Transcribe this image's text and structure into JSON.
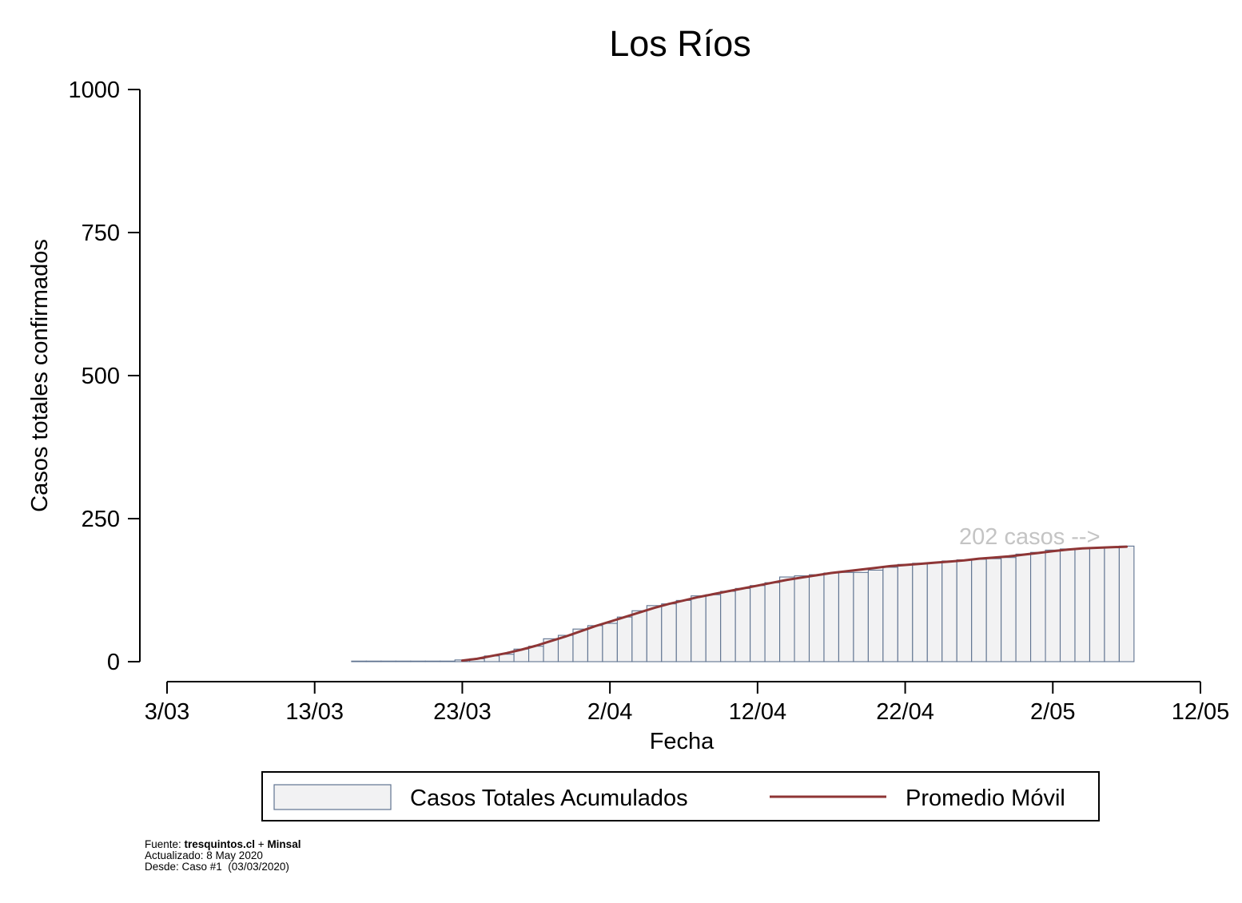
{
  "chart_data": {
    "type": "bar",
    "title": "Los Ríos",
    "xlabel": "Fecha",
    "ylabel": "Casos totales confirmados",
    "xlim": [
      "2020-03-03",
      "2020-05-12"
    ],
    "ylim": [
      0,
      1000
    ],
    "yticks": [
      0,
      250,
      500,
      750,
      1000
    ],
    "xticks": [
      {
        "value": "2020-03-03",
        "label": "3/03"
      },
      {
        "value": "2020-03-13",
        "label": "13/03"
      },
      {
        "value": "2020-03-23",
        "label": "23/03"
      },
      {
        "value": "2020-04-02",
        "label": "2/04"
      },
      {
        "value": "2020-04-12",
        "label": "12/04"
      },
      {
        "value": "2020-04-22",
        "label": "22/04"
      },
      {
        "value": "2020-05-02",
        "label": "2/05"
      },
      {
        "value": "2020-05-12",
        "label": "12/05"
      }
    ],
    "x": [
      "2020-03-16",
      "2020-03-17",
      "2020-03-18",
      "2020-03-19",
      "2020-03-20",
      "2020-03-21",
      "2020-03-22",
      "2020-03-23",
      "2020-03-24",
      "2020-03-25",
      "2020-03-26",
      "2020-03-27",
      "2020-03-28",
      "2020-03-29",
      "2020-03-30",
      "2020-03-31",
      "2020-04-01",
      "2020-04-02",
      "2020-04-03",
      "2020-04-04",
      "2020-04-05",
      "2020-04-06",
      "2020-04-07",
      "2020-04-08",
      "2020-04-09",
      "2020-04-10",
      "2020-04-11",
      "2020-04-12",
      "2020-04-13",
      "2020-04-14",
      "2020-04-15",
      "2020-04-16",
      "2020-04-17",
      "2020-04-18",
      "2020-04-19",
      "2020-04-20",
      "2020-04-21",
      "2020-04-22",
      "2020-04-23",
      "2020-04-24",
      "2020-04-25",
      "2020-04-26",
      "2020-04-27",
      "2020-04-28",
      "2020-04-29",
      "2020-04-30",
      "2020-05-01",
      "2020-05-02",
      "2020-05-03",
      "2020-05-04",
      "2020-05-05",
      "2020-05-06",
      "2020-05-07"
    ],
    "series": [
      {
        "name": "Casos Totales Acumulados",
        "type": "bar",
        "values": [
          1,
          1,
          1,
          1,
          1,
          1,
          1,
          3,
          5,
          10,
          13,
          22,
          27,
          40,
          46,
          57,
          63,
          67,
          78,
          89,
          98,
          101,
          107,
          115,
          117,
          123,
          128,
          133,
          138,
          148,
          150,
          152,
          155,
          156,
          156,
          160,
          165,
          170,
          172,
          173,
          176,
          178,
          179,
          180,
          182,
          188,
          191,
          195,
          197,
          198,
          199,
          200,
          202
        ]
      },
      {
        "name": "Promedio Móvil",
        "type": "line",
        "values": [
          null,
          null,
          null,
          null,
          null,
          null,
          null,
          2,
          5,
          10,
          15,
          21,
          28,
          36,
          44,
          53,
          62,
          70,
          78,
          86,
          94,
          101,
          107,
          113,
          118,
          123,
          128,
          133,
          138,
          143,
          147,
          151,
          155,
          158,
          161,
          164,
          167,
          169,
          171,
          173,
          175,
          177,
          180,
          182,
          184,
          187,
          190,
          193,
          196,
          198,
          199,
          200,
          201
        ]
      }
    ],
    "annotations": [
      {
        "text": "202 casos -->"
      }
    ],
    "legend_position": "bottom",
    "grid": false
  },
  "footer": {
    "source_prefix": "Fuente: ",
    "source_site": "tresquintos.cl",
    "source_separator": " + ",
    "source_org": "Minsal",
    "updated": "Actualizado: 8 May 2020",
    "since": "Desde: Caso #1  (03/03/2020)"
  },
  "colors": {
    "background": "#ffffff",
    "bar_fill": "#f2f2f3",
    "bar_stroke": "#5f7390",
    "line": "#8e3535",
    "annotation": "#c4c4c4"
  }
}
